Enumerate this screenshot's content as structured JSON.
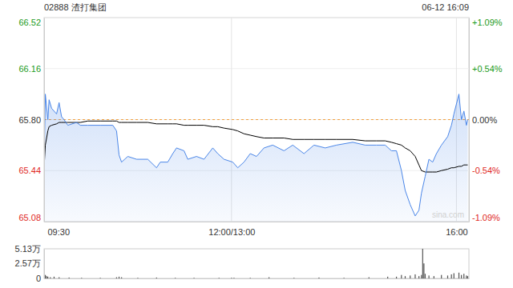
{
  "chart_data": [
    {
      "type": "line",
      "title": "02888 渣打集团",
      "subtitle": "06-12 16:09",
      "watermark": "sina.com",
      "x": [
        0,
        1,
        3,
        4,
        6,
        10,
        12,
        14,
        16,
        19,
        26,
        29,
        35,
        45,
        55,
        58,
        60,
        62,
        67,
        74,
        83,
        90,
        93,
        99,
        103,
        106,
        112,
        115,
        122,
        128,
        135,
        139,
        144,
        151,
        155,
        160,
        165,
        170,
        176,
        183,
        192,
        199,
        208,
        216,
        225,
        234,
        247,
        257,
        266,
        273,
        278,
        282,
        286,
        289,
        293,
        297,
        300,
        302,
        305,
        308,
        311,
        314,
        318,
        323,
        326,
        328,
        332,
        334,
        336,
        338,
        339
      ],
      "xlim": [
        0,
        340
      ],
      "xticks": [
        {
          "value": 0,
          "label": "09:30"
        },
        {
          "value": 150,
          "label": "12:00/13:00"
        },
        {
          "value": 330,
          "label": "16:00"
        }
      ],
      "ylim": [
        65.08,
        66.52
      ],
      "yticks": [
        {
          "value": 66.52,
          "label": "66.52"
        },
        {
          "value": 66.16,
          "label": "66.16"
        },
        {
          "value": 65.8,
          "label": "65.80"
        },
        {
          "value": 65.44,
          "label": "65.44"
        },
        {
          "value": 65.08,
          "label": "65.08"
        }
      ],
      "y2lim": [
        -1.09,
        1.09
      ],
      "y2ticks": [
        {
          "value": 1.09,
          "label": "+1.09%"
        },
        {
          "value": 0.54,
          "label": "+0.54%"
        },
        {
          "value": 0,
          "label": "0.00%"
        },
        {
          "value": -0.54,
          "label": "-0.54%"
        },
        {
          "value": -1.09,
          "label": "-1.09%"
        }
      ],
      "grid": true,
      "series": [
        {
          "color": "#4a86e8",
          "values": [
            65.46,
            65.98,
            65.8,
            65.94,
            65.88,
            65.84,
            65.92,
            65.82,
            65.8,
            65.76,
            65.78,
            65.76,
            65.76,
            65.76,
            65.76,
            65.72,
            65.55,
            65.5,
            65.54,
            65.52,
            65.52,
            65.46,
            65.5,
            65.5,
            65.56,
            65.6,
            65.58,
            65.52,
            65.54,
            65.52,
            65.6,
            65.56,
            65.52,
            65.5,
            65.46,
            65.5,
            65.56,
            65.54,
            65.6,
            65.62,
            65.58,
            65.62,
            65.56,
            65.62,
            65.6,
            65.62,
            65.64,
            65.62,
            65.62,
            65.62,
            65.58,
            65.58,
            65.44,
            65.3,
            65.2,
            65.12,
            65.16,
            65.28,
            65.4,
            65.52,
            65.5,
            65.56,
            65.62,
            65.68,
            65.76,
            65.84,
            65.98,
            65.8,
            65.86,
            65.76,
            65.8
          ]
        },
        {
          "color": "#000000",
          "values": [
            65.46,
            65.62,
            65.72,
            65.75,
            65.76,
            65.77,
            65.78,
            65.78,
            65.78,
            65.78,
            65.78,
            65.78,
            65.79,
            65.79,
            65.79,
            65.79,
            65.78,
            65.78,
            65.78,
            65.78,
            65.78,
            65.77,
            65.77,
            65.77,
            65.77,
            65.77,
            65.76,
            65.76,
            65.76,
            65.76,
            65.75,
            65.75,
            65.74,
            65.73,
            65.72,
            65.7,
            65.69,
            65.68,
            65.67,
            65.67,
            65.67,
            65.66,
            65.66,
            65.66,
            65.66,
            65.66,
            65.66,
            65.65,
            65.65,
            65.65,
            65.64,
            65.63,
            65.62,
            65.6,
            65.58,
            65.54,
            65.48,
            65.44,
            65.43,
            65.43,
            65.43,
            65.43,
            65.44,
            65.45,
            65.46,
            65.46,
            65.47,
            65.47,
            65.48,
            65.48,
            65.48
          ]
        }
      ]
    },
    {
      "type": "bar",
      "x": [
        0,
        1,
        2,
        3,
        5,
        8,
        12,
        20,
        30,
        45,
        58,
        60,
        62,
        75,
        90,
        105,
        120,
        140,
        150,
        152,
        165,
        180,
        200,
        220,
        240,
        260,
        275,
        282,
        286,
        289,
        293,
        297,
        300,
        302,
        303,
        304,
        305,
        308,
        312,
        318,
        323,
        326,
        328,
        332,
        334,
        336,
        338,
        339
      ],
      "xlim": [
        0,
        340
      ],
      "ylim": [
        0,
        5.13
      ],
      "yticks": [
        {
          "value": 5.13,
          "label": "5.13万"
        },
        {
          "value": 2.57,
          "label": "2.57万"
        },
        0
      ],
      "color": "#555555",
      "values": [
        0.9,
        0.6,
        0.4,
        0.3,
        0.2,
        0.3,
        0.2,
        0.15,
        0.1,
        0.1,
        0.2,
        0.3,
        0.2,
        0.1,
        0.15,
        0.1,
        0.1,
        0.1,
        0.1,
        0.1,
        0.1,
        0.2,
        0.1,
        0.15,
        0.1,
        0.2,
        0.3,
        0.3,
        0.6,
        0.4,
        0.5,
        0.7,
        0.4,
        0.6,
        5.13,
        2.6,
        0.8,
        0.5,
        0.4,
        0.6,
        0.5,
        0.7,
        0.9,
        1.0,
        0.6,
        0.8,
        0.5,
        0.4
      ]
    }
  ]
}
